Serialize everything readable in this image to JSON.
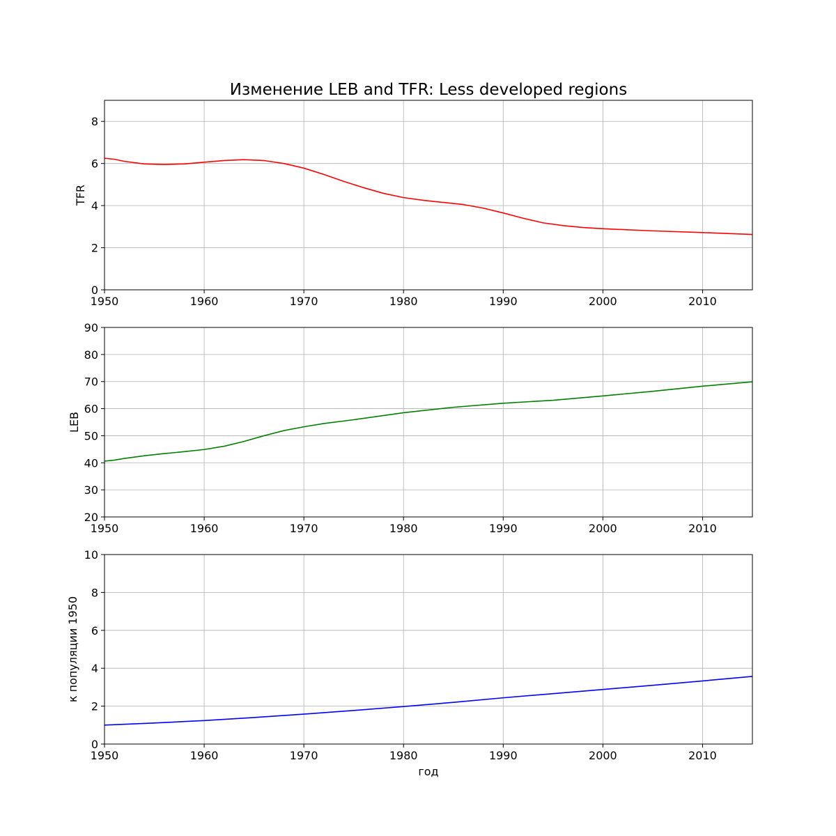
{
  "title": "Изменение LEB and TFR: Less developed regions",
  "chart_data": [
    {
      "type": "line",
      "ylabel": "TFR",
      "xlabel": "",
      "xlim": [
        1950,
        2015
      ],
      "ylim": [
        0,
        9
      ],
      "xticks": [
        1950,
        1960,
        1970,
        1980,
        1990,
        2000,
        2010
      ],
      "yticks": [
        0,
        2,
        4,
        6,
        8
      ],
      "grid": true,
      "series": [
        {
          "color": "#ff0000",
          "x": [
            1950,
            1951,
            1952,
            1954,
            1956,
            1958,
            1960,
            1962,
            1964,
            1966,
            1968,
            1970,
            1972,
            1974,
            1976,
            1978,
            1980,
            1982,
            1984,
            1986,
            1988,
            1990,
            1992,
            1994,
            1996,
            1998,
            2000,
            2005,
            2010,
            2015
          ],
          "y": [
            6.25,
            6.2,
            6.1,
            5.98,
            5.95,
            5.98,
            6.06,
            6.14,
            6.18,
            6.14,
            6.0,
            5.78,
            5.48,
            5.15,
            4.85,
            4.58,
            4.38,
            4.25,
            4.15,
            4.05,
            3.88,
            3.65,
            3.4,
            3.18,
            3.05,
            2.96,
            2.9,
            2.8,
            2.72,
            2.63
          ]
        }
      ]
    },
    {
      "type": "line",
      "ylabel": "LEB",
      "xlabel": "",
      "xlim": [
        1950,
        2015
      ],
      "ylim": [
        20,
        90
      ],
      "xticks": [
        1950,
        1960,
        1970,
        1980,
        1990,
        2000,
        2010
      ],
      "yticks": [
        20,
        30,
        40,
        50,
        60,
        70,
        80,
        90
      ],
      "grid": true,
      "series": [
        {
          "color": "#008000",
          "x": [
            1950,
            1951,
            1952,
            1954,
            1956,
            1958,
            1960,
            1962,
            1964,
            1966,
            1968,
            1970,
            1972,
            1975,
            1980,
            1985,
            1990,
            1995,
            2000,
            2005,
            2010,
            2015
          ],
          "y": [
            40.6,
            41.0,
            41.6,
            42.6,
            43.4,
            44.1,
            44.9,
            46.1,
            47.9,
            50.0,
            51.9,
            53.3,
            54.5,
            55.9,
            58.5,
            60.5,
            62.0,
            63.1,
            64.7,
            66.4,
            68.3,
            69.9
          ]
        }
      ]
    },
    {
      "type": "line",
      "ylabel": "к популяции 1950",
      "xlabel": "год",
      "xlim": [
        1950,
        2015
      ],
      "ylim": [
        0,
        10
      ],
      "xticks": [
        1950,
        1960,
        1970,
        1980,
        1990,
        2000,
        2010
      ],
      "yticks": [
        0,
        2,
        4,
        6,
        8,
        10
      ],
      "grid": true,
      "series": [
        {
          "color": "#0000ff",
          "x": [
            1950,
            1955,
            1960,
            1965,
            1970,
            1975,
            1980,
            1985,
            1990,
            1995,
            2000,
            2005,
            2010,
            2015
          ],
          "y": [
            1.0,
            1.11,
            1.24,
            1.4,
            1.58,
            1.77,
            1.98,
            2.2,
            2.44,
            2.66,
            2.88,
            3.1,
            3.33,
            3.57
          ]
        }
      ]
    }
  ]
}
